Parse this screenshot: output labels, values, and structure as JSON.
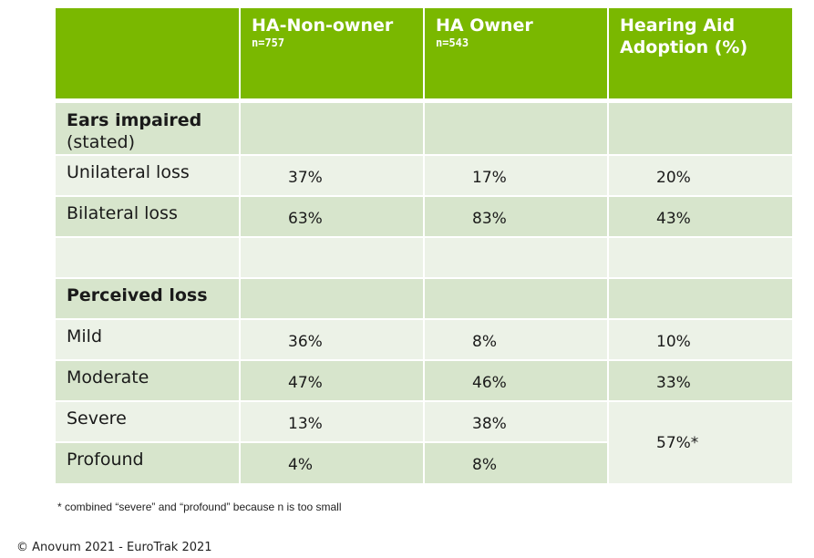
{
  "header": {
    "col1": {
      "title": "HA-Non-owner",
      "n": "n=757"
    },
    "col2": {
      "title": "HA Owner",
      "n": "n=543"
    },
    "col3": {
      "title_line1": "Hearing Aid",
      "title_line2": "Adoption (%)"
    }
  },
  "section1": {
    "title": "Ears impaired",
    "subtitle": "(stated)"
  },
  "rows1": [
    {
      "label": "Unilateral loss",
      "non_owner": "37%",
      "owner": "17%",
      "adoption": "20%"
    },
    {
      "label": "Bilateral loss",
      "non_owner": "63%",
      "owner": "83%",
      "adoption": "43%"
    }
  ],
  "section2": {
    "title": "Perceived loss"
  },
  "rows2": [
    {
      "label": "Mild",
      "non_owner": "36%",
      "owner": "8%",
      "adoption": "10%"
    },
    {
      "label": "Moderate",
      "non_owner": "47%",
      "owner": "46%",
      "adoption": "33%"
    },
    {
      "label": "Severe",
      "non_owner": "13%",
      "owner": "38%"
    },
    {
      "label": "Profound",
      "non_owner": "4%",
      "owner": "8%"
    }
  ],
  "combined_adoption": "57%*",
  "footnote": "* combined “severe” and “profound” because n is too small",
  "copyright": "© Anovum 2021 - EuroTrak 2021"
}
